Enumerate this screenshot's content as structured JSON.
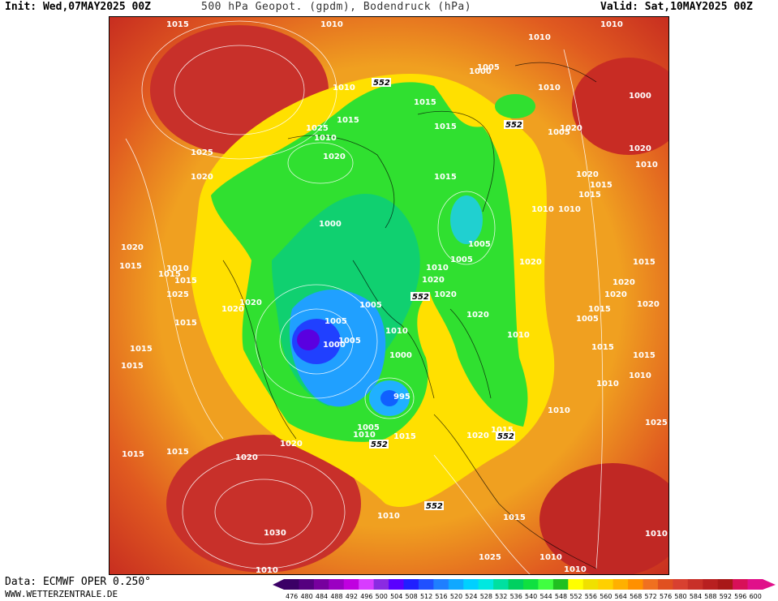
{
  "header": {
    "init": "Init: Wed,07MAY2025 00Z",
    "title": "500 hPa Geopot. (gpdm), Bodendruck (hPa)",
    "valid": "Valid: Sat,10MAY2025 00Z"
  },
  "footer": {
    "source": "Data: ECMWF OPER 0.250°",
    "website": "WWW.WETTERZENTRALE.DE"
  },
  "colorbar": {
    "ticks": [
      "476",
      "480",
      "484",
      "488",
      "492",
      "496",
      "500",
      "504",
      "508",
      "512",
      "516",
      "520",
      "524",
      "528",
      "532",
      "536",
      "540",
      "544",
      "548",
      "552",
      "556",
      "560",
      "564",
      "568",
      "572",
      "576",
      "580",
      "584",
      "588",
      "592",
      "596",
      "600"
    ],
    "colors": [
      "#3b0066",
      "#55007f",
      "#77009e",
      "#9b00c2",
      "#c000e0",
      "#d83cff",
      "#8a2be2",
      "#5a00ff",
      "#2020ff",
      "#2050ff",
      "#1f7fff",
      "#10a8ff",
      "#00d0ff",
      "#00e8e0",
      "#00e0a0",
      "#00d060",
      "#10e040",
      "#40ff40",
      "#20c020",
      "#ffff00",
      "#f0e000",
      "#ffd000",
      "#ffb000",
      "#ff9000",
      "#f07020",
      "#e05020",
      "#d84030",
      "#c83028",
      "#b82020",
      "#a81818",
      "#d81058",
      "#e0108a"
    ]
  },
  "map_labels": {
    "isobars": [
      "1015",
      "1010",
      "1010",
      "1010",
      "1010",
      "1005",
      "1000",
      "1015",
      "1010",
      "1000",
      "1015",
      "1010",
      "1025",
      "1020",
      "1015",
      "1020",
      "1005",
      "1020",
      "1010",
      "1020",
      "1025",
      "1020",
      "1015",
      "1015",
      "1010",
      "1010",
      "1015",
      "1000",
      "1005",
      "1005",
      "1020",
      "1015",
      "1015",
      "1010",
      "1015",
      "1010",
      "1020",
      "1015",
      "1025",
      "1020",
      "1020",
      "1020",
      "1020",
      "1020",
      "1020",
      "1020",
      "1015",
      "1005",
      "1005",
      "1000",
      "1005",
      "1010",
      "1000",
      "1005",
      "1015",
      "1020",
      "1015",
      "1010",
      "1015",
      "1015",
      "1015",
      "1010",
      "1010",
      "995",
      "1005",
      "1015",
      "1020",
      "1010",
      "1010",
      "1025",
      "1015",
      "1020",
      "1020",
      "1015",
      "1015",
      "1010",
      "1030",
      "1015",
      "1010",
      "1010",
      "1010",
      "1025",
      "1010"
    ],
    "geopotential_552": [
      "552",
      "552",
      "552",
      "552",
      "552",
      "552"
    ]
  }
}
